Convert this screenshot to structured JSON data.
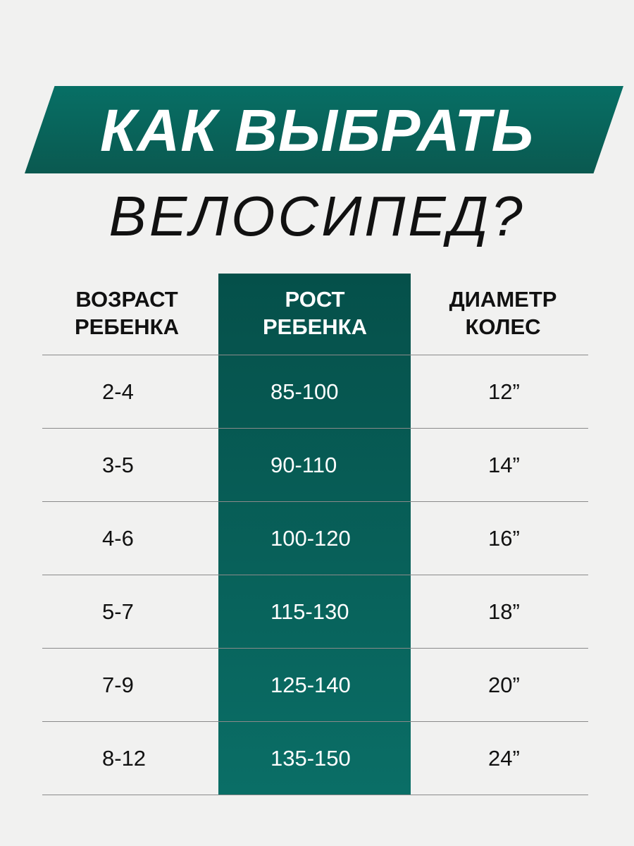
{
  "title": {
    "line1": "КАК ВЫБРАТЬ",
    "line2": "ВЕЛОСИПЕД?"
  },
  "colors": {
    "accent": "#0a5e55",
    "background": "#f1f1f0"
  },
  "table": {
    "headers": [
      {
        "line1": "ВОЗРАСТ",
        "line2": "РЕБЕНКА"
      },
      {
        "line1": "РОСТ",
        "line2": "РЕБЕНКА"
      },
      {
        "line1": "ДИАМЕТР",
        "line2": "КОЛЕС"
      }
    ],
    "rows": [
      [
        "2-4",
        "85-100",
        "12”"
      ],
      [
        "3-5",
        "90-110",
        "14”"
      ],
      [
        "4-6",
        "100-120",
        "16”"
      ],
      [
        "5-7",
        "115-130",
        "18”"
      ],
      [
        "7-9",
        "125-140",
        "20”"
      ],
      [
        "8-12",
        "135-150",
        "24”"
      ]
    ]
  }
}
